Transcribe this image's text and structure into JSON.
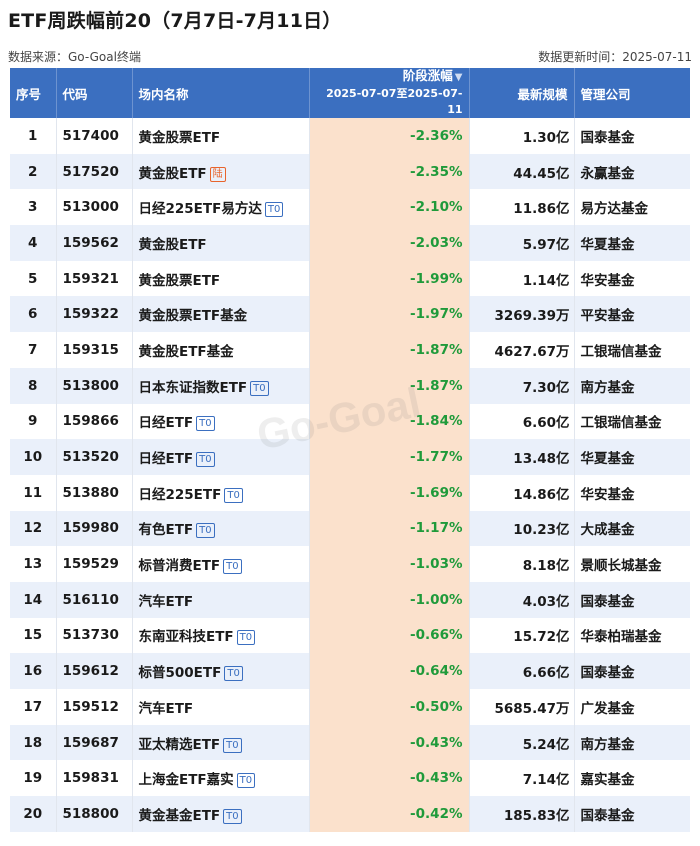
{
  "title": "ETF周跌幅前20（7月7日-7月11日）",
  "source": "数据来源：Go-Goal终端",
  "update": "数据更新时间：2025-07-11",
  "watermark": "Go-Goal",
  "colors": {
    "header": "#3b6fc0",
    "change_col": "#fbe1cc",
    "negative_text": "#1f9a3a",
    "row_alt": "#eaf0fa"
  },
  "table": {
    "headers": {
      "index": "序号",
      "code": "代码",
      "name": "场内名称",
      "change": "阶段涨幅",
      "change_range": "2025-07-07至2025-07-11",
      "sort_icon": "filter-triangle-icon",
      "scale": "最新规模",
      "company": "管理公司"
    },
    "rows": [
      {
        "index": "1",
        "code": "517400",
        "name": "黄金股票ETF",
        "tag": "",
        "change": "-2.36%",
        "scale": "1.30亿",
        "company": "国泰基金"
      },
      {
        "index": "2",
        "code": "517520",
        "name": "黄金股ETF",
        "tag": "陆",
        "change": "-2.35%",
        "scale": "44.45亿",
        "company": "永赢基金"
      },
      {
        "index": "3",
        "code": "513000",
        "name": "日经225ETF易方达",
        "tag": "T0",
        "change": "-2.10%",
        "scale": "11.86亿",
        "company": "易方达基金"
      },
      {
        "index": "4",
        "code": "159562",
        "name": "黄金股ETF",
        "tag": "",
        "change": "-2.03%",
        "scale": "5.97亿",
        "company": "华夏基金"
      },
      {
        "index": "5",
        "code": "159321",
        "name": "黄金股票ETF",
        "tag": "",
        "change": "-1.99%",
        "scale": "1.14亿",
        "company": "华安基金"
      },
      {
        "index": "6",
        "code": "159322",
        "name": "黄金股票ETF基金",
        "tag": "",
        "change": "-1.97%",
        "scale": "3269.39万",
        "company": "平安基金"
      },
      {
        "index": "7",
        "code": "159315",
        "name": "黄金股ETF基金",
        "tag": "",
        "change": "-1.87%",
        "scale": "4627.67万",
        "company": "工银瑞信基金"
      },
      {
        "index": "8",
        "code": "513800",
        "name": "日本东证指数ETF",
        "tag": "T0",
        "change": "-1.87%",
        "scale": "7.30亿",
        "company": "南方基金"
      },
      {
        "index": "9",
        "code": "159866",
        "name": "日经ETF",
        "tag": "T0",
        "change": "-1.84%",
        "scale": "6.60亿",
        "company": "工银瑞信基金"
      },
      {
        "index": "10",
        "code": "513520",
        "name": "日经ETF",
        "tag": "T0",
        "change": "-1.77%",
        "scale": "13.48亿",
        "company": "华夏基金"
      },
      {
        "index": "11",
        "code": "513880",
        "name": "日经225ETF",
        "tag": "T0",
        "change": "-1.69%",
        "scale": "14.86亿",
        "company": "华安基金"
      },
      {
        "index": "12",
        "code": "159980",
        "name": "有色ETF",
        "tag": "T0",
        "change": "-1.17%",
        "scale": "10.23亿",
        "company": "大成基金"
      },
      {
        "index": "13",
        "code": "159529",
        "name": "标普消费ETF",
        "tag": "T0",
        "change": "-1.03%",
        "scale": "8.18亿",
        "company": "景顺长城基金"
      },
      {
        "index": "14",
        "code": "516110",
        "name": "汽车ETF",
        "tag": "",
        "change": "-1.00%",
        "scale": "4.03亿",
        "company": "国泰基金"
      },
      {
        "index": "15",
        "code": "513730",
        "name": "东南亚科技ETF",
        "tag": "T0",
        "change": "-0.66%",
        "scale": "15.72亿",
        "company": "华泰柏瑞基金"
      },
      {
        "index": "16",
        "code": "159612",
        "name": "标普500ETF",
        "tag": "T0",
        "change": "-0.64%",
        "scale": "6.66亿",
        "company": "国泰基金"
      },
      {
        "index": "17",
        "code": "159512",
        "name": "汽车ETF",
        "tag": "",
        "change": "-0.50%",
        "scale": "5685.47万",
        "company": "广发基金"
      },
      {
        "index": "18",
        "code": "159687",
        "name": "亚太精选ETF",
        "tag": "T0",
        "change": "-0.43%",
        "scale": "5.24亿",
        "company": "南方基金"
      },
      {
        "index": "19",
        "code": "159831",
        "name": "上海金ETF嘉实",
        "tag": "T0",
        "change": "-0.43%",
        "scale": "7.14亿",
        "company": "嘉实基金"
      },
      {
        "index": "20",
        "code": "518800",
        "name": "黄金基金ETF",
        "tag": "T0",
        "change": "-0.42%",
        "scale": "185.83亿",
        "company": "国泰基金"
      }
    ]
  }
}
